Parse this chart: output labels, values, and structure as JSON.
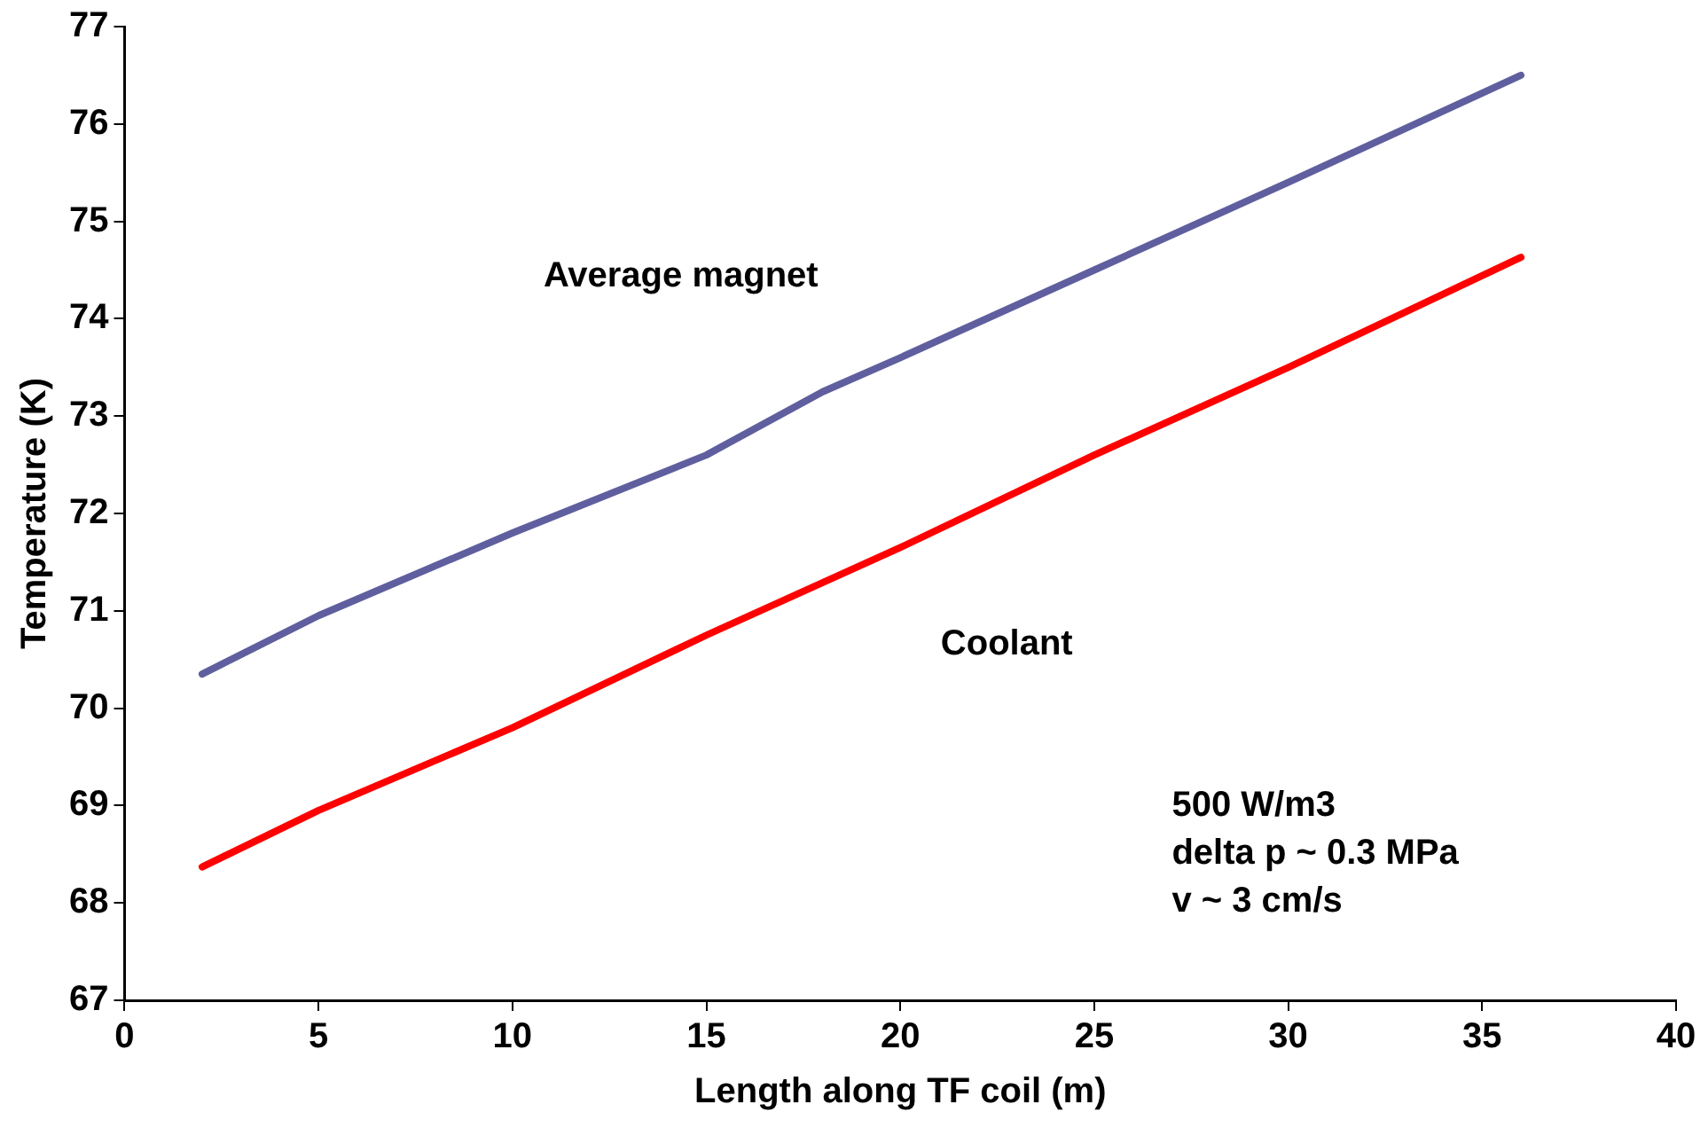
{
  "chart_data": {
    "type": "line",
    "xlabel": "Length along TF coil (m)",
    "ylabel": "Temperature (K)",
    "xlim": [
      0,
      40
    ],
    "xticks": [
      0,
      5,
      10,
      15,
      20,
      25,
      30,
      35,
      40
    ],
    "ylim": [
      67,
      77
    ],
    "yticks": [
      67,
      68,
      69,
      70,
      71,
      72,
      73,
      74,
      75,
      76,
      77
    ],
    "grid": false,
    "legend": false,
    "marker": "none",
    "line_style": "solid",
    "series": [
      {
        "name": "Average magnet",
        "color": "#5f5f9f",
        "x": [
          2,
          5,
          10,
          15,
          18,
          20,
          25,
          30,
          36
        ],
        "values": [
          70.35,
          70.95,
          71.8,
          72.6,
          73.25,
          73.6,
          74.5,
          75.4,
          76.5
        ]
      },
      {
        "name": "Coolant",
        "color": "#ff0000",
        "x": [
          2,
          5,
          10,
          15,
          20,
          25,
          30,
          36
        ],
        "values": [
          68.37,
          68.95,
          69.8,
          70.75,
          71.65,
          72.6,
          73.5,
          74.63
        ]
      }
    ],
    "annotations": [
      "500 W/m3",
      "delta p ~ 0.3 MPa",
      "v ~ 3 cm/s"
    ]
  }
}
